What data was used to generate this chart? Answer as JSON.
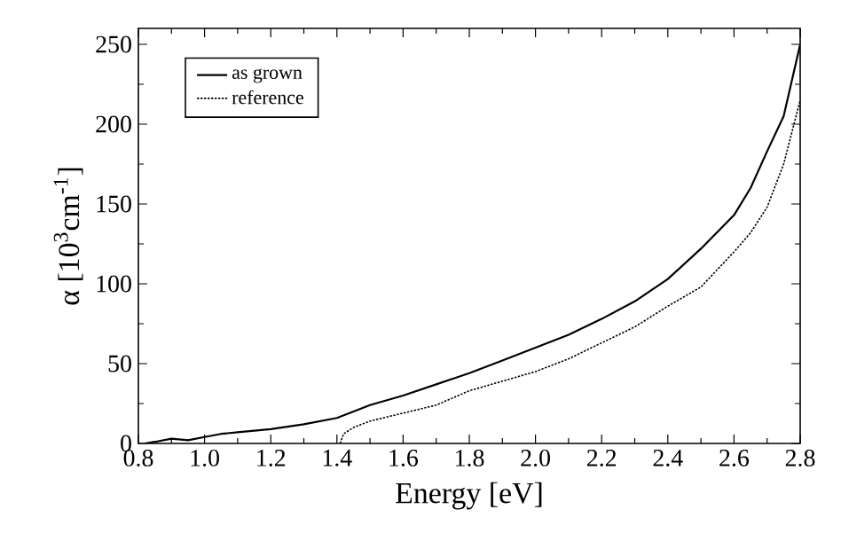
{
  "chart_data": {
    "type": "line",
    "xlabel": "Energy [eV]",
    "ylabel": "α [10$^{3}$cm$^{-1}$]",
    "xlim": [
      0.8,
      2.8
    ],
    "ylim": [
      0,
      260
    ],
    "xticks": [
      0.8,
      {
        "value": 1,
        "label": "1.0"
      },
      1.2,
      1.4,
      1.6,
      1.8,
      {
        "value": 2,
        "label": "2.0"
      },
      2.2,
      2.4,
      2.6,
      2.8
    ],
    "yticks": [
      0,
      50,
      100,
      150,
      200,
      250
    ],
    "grid": false,
    "legend": "top left",
    "marker": "none",
    "series": [
      {
        "name": "as grown",
        "color": "#000000",
        "line_style": "solid",
        "x": [
          0.82,
          0.85,
          0.9,
          0.95,
          1.0,
          1.05,
          1.1,
          1.2,
          1.3,
          1.4,
          1.5,
          1.6,
          1.7,
          1.8,
          1.9,
          2.0,
          2.1,
          2.2,
          2.3,
          2.4,
          2.5,
          2.6,
          2.65,
          2.7,
          2.75,
          2.8
        ],
        "values": [
          0,
          1,
          3,
          2,
          4,
          6,
          7,
          9,
          12,
          16,
          24,
          30,
          37,
          44,
          52,
          60,
          68,
          78,
          89,
          103,
          122,
          143,
          160,
          183,
          205,
          250
        ]
      },
      {
        "name": "reference",
        "color": "#000000",
        "line_style": "dotted",
        "x": [
          1.41,
          1.42,
          1.45,
          1.5,
          1.6,
          1.7,
          1.8,
          1.9,
          2.0,
          2.1,
          2.2,
          2.3,
          2.4,
          2.5,
          2.6,
          2.65,
          2.7,
          2.75,
          2.8
        ],
        "values": [
          0,
          6,
          10,
          14,
          19,
          24,
          33,
          39,
          45,
          53,
          63,
          73,
          86,
          98,
          120,
          132,
          148,
          175,
          215
        ]
      }
    ]
  }
}
